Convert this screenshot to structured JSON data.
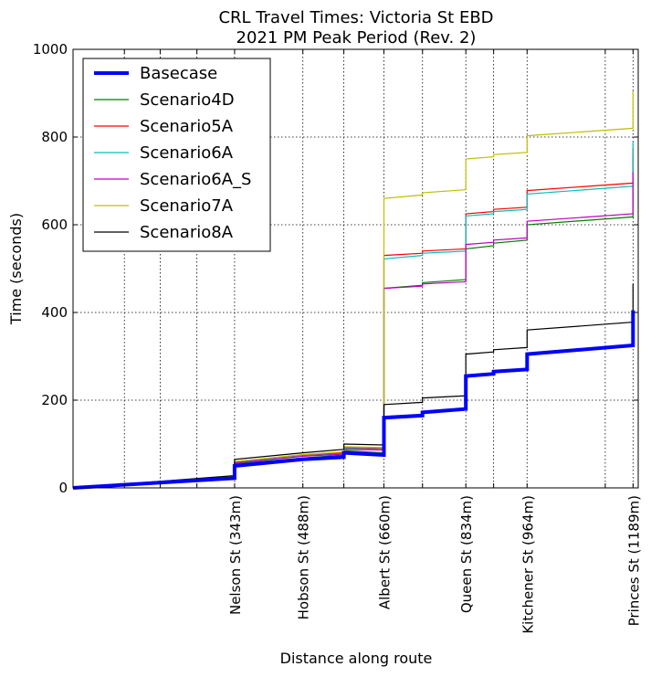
{
  "chart_data": {
    "type": "line",
    "title": "CRL Travel Times: Victoria St EBD",
    "subtitle": "2021 PM Peak Period (Rev. 2)",
    "xlabel": "Distance along route",
    "ylabel": "Time (seconds)",
    "xlim": [
      0,
      1200
    ],
    "ylim": [
      0,
      1000
    ],
    "grid": true,
    "legend_position": "top-left",
    "y_ticks": [
      0,
      200,
      400,
      600,
      800,
      1000
    ],
    "x_grid_lines": [
      109,
      185,
      263,
      343,
      488,
      575,
      660,
      742,
      834,
      893,
      964,
      1130,
      1189
    ],
    "x_tick_labels": [
      {
        "x": 343,
        "label": "Nelson St (343m)"
      },
      {
        "x": 488,
        "label": "Hobson St (488m)"
      },
      {
        "x": 660,
        "label": "Albert St (660m)"
      },
      {
        "x": 834,
        "label": "Queen St (834m)"
      },
      {
        "x": 964,
        "label": "Kitchener St (964m)"
      },
      {
        "x": 1189,
        "label": "Princes St (1189m)"
      }
    ],
    "series": [
      {
        "name": "Basecase",
        "color": "#0000ff",
        "bold": true,
        "points": [
          [
            0,
            0
          ],
          [
            343,
            22
          ],
          [
            343,
            50
          ],
          [
            488,
            65
          ],
          [
            575,
            70
          ],
          [
            575,
            80
          ],
          [
            660,
            75
          ],
          [
            660,
            125
          ],
          [
            660,
            160
          ],
          [
            742,
            165
          ],
          [
            742,
            172
          ],
          [
            834,
            180
          ],
          [
            834,
            255
          ],
          [
            893,
            260
          ],
          [
            893,
            265
          ],
          [
            964,
            270
          ],
          [
            964,
            305
          ],
          [
            1189,
            325
          ],
          [
            1189,
            405
          ]
        ]
      },
      {
        "name": "Scenario4D",
        "color": "#008000",
        "bold": false,
        "points": [
          [
            0,
            0
          ],
          [
            343,
            24
          ],
          [
            343,
            55
          ],
          [
            488,
            68
          ],
          [
            575,
            75
          ],
          [
            575,
            85
          ],
          [
            660,
            80
          ],
          [
            660,
            450
          ],
          [
            660,
            455
          ],
          [
            742,
            462
          ],
          [
            742,
            468
          ],
          [
            834,
            475
          ],
          [
            834,
            545
          ],
          [
            893,
            552
          ],
          [
            893,
            558
          ],
          [
            964,
            565
          ],
          [
            964,
            600
          ],
          [
            1189,
            618
          ],
          [
            1189,
            760
          ]
        ]
      },
      {
        "name": "Scenario5A",
        "color": "#ff0000",
        "bold": false,
        "points": [
          [
            0,
            0
          ],
          [
            343,
            26
          ],
          [
            343,
            60
          ],
          [
            488,
            75
          ],
          [
            575,
            80
          ],
          [
            575,
            92
          ],
          [
            660,
            90
          ],
          [
            660,
            530
          ],
          [
            742,
            535
          ],
          [
            742,
            540
          ],
          [
            834,
            545
          ],
          [
            834,
            625
          ],
          [
            893,
            630
          ],
          [
            893,
            635
          ],
          [
            964,
            640
          ],
          [
            964,
            678
          ],
          [
            1189,
            695
          ],
          [
            1189,
            775
          ]
        ]
      },
      {
        "name": "Scenario6A",
        "color": "#00bfbf",
        "bold": false,
        "points": [
          [
            0,
            0
          ],
          [
            343,
            26
          ],
          [
            343,
            58
          ],
          [
            488,
            73
          ],
          [
            575,
            78
          ],
          [
            575,
            90
          ],
          [
            660,
            88
          ],
          [
            660,
            522
          ],
          [
            742,
            530
          ],
          [
            742,
            535
          ],
          [
            834,
            540
          ],
          [
            834,
            620
          ],
          [
            893,
            625
          ],
          [
            893,
            630
          ],
          [
            964,
            635
          ],
          [
            964,
            670
          ],
          [
            1189,
            688
          ],
          [
            1189,
            790
          ]
        ]
      },
      {
        "name": "Scenario6A_S",
        "color": "#bf00bf",
        "bold": false,
        "points": [
          [
            0,
            0
          ],
          [
            343,
            25
          ],
          [
            343,
            57
          ],
          [
            488,
            72
          ],
          [
            575,
            77
          ],
          [
            575,
            88
          ],
          [
            660,
            86
          ],
          [
            660,
            455
          ],
          [
            742,
            460
          ],
          [
            742,
            465
          ],
          [
            834,
            470
          ],
          [
            834,
            555
          ],
          [
            893,
            560
          ],
          [
            893,
            565
          ],
          [
            964,
            570
          ],
          [
            964,
            608
          ],
          [
            1189,
            625
          ],
          [
            1189,
            720
          ]
        ]
      },
      {
        "name": "Scenario7A",
        "color": "#bfbf00",
        "bold": false,
        "points": [
          [
            0,
            0
          ],
          [
            343,
            26
          ],
          [
            343,
            60
          ],
          [
            488,
            76
          ],
          [
            575,
            82
          ],
          [
            575,
            94
          ],
          [
            660,
            92
          ],
          [
            660,
            660
          ],
          [
            742,
            668
          ],
          [
            742,
            673
          ],
          [
            834,
            680
          ],
          [
            834,
            750
          ],
          [
            893,
            755
          ],
          [
            893,
            760
          ],
          [
            964,
            765
          ],
          [
            964,
            803
          ],
          [
            1189,
            820
          ],
          [
            1189,
            905
          ]
        ]
      },
      {
        "name": "Scenario8A",
        "color": "#000000",
        "bold": false,
        "points": [
          [
            0,
            0
          ],
          [
            343,
            28
          ],
          [
            343,
            65
          ],
          [
            488,
            80
          ],
          [
            575,
            88
          ],
          [
            575,
            100
          ],
          [
            660,
            98
          ],
          [
            660,
            143
          ],
          [
            660,
            190
          ],
          [
            742,
            195
          ],
          [
            742,
            205
          ],
          [
            834,
            210
          ],
          [
            834,
            305
          ],
          [
            893,
            310
          ],
          [
            893,
            315
          ],
          [
            964,
            320
          ],
          [
            964,
            360
          ],
          [
            1189,
            378
          ],
          [
            1189,
            465
          ]
        ]
      }
    ]
  }
}
